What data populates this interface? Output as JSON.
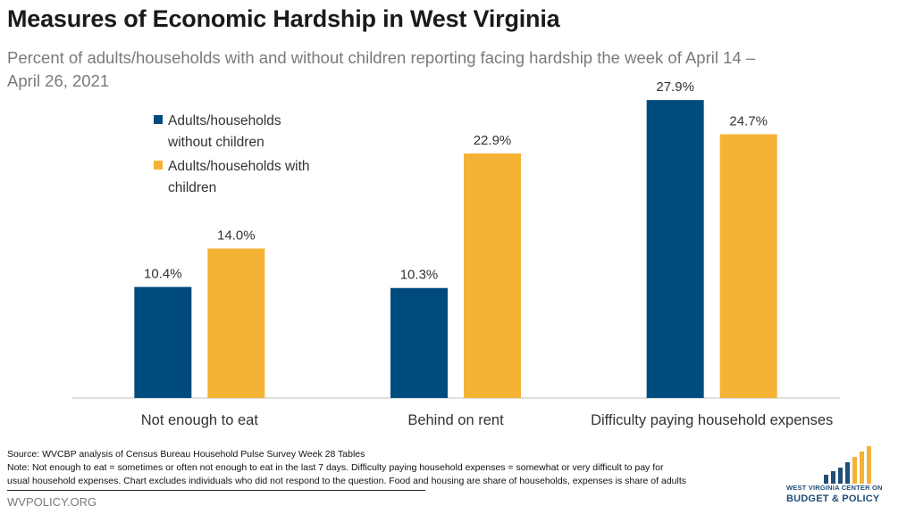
{
  "header": {
    "title": "Measures of Economic Hardship in West Virginia",
    "subtitle": "Percent of adults/households with and without children reporting facing hardship the week of April 14 – April 26, 2021"
  },
  "chart_data": {
    "type": "bar",
    "categories": [
      "Not enough to eat",
      "Behind on rent",
      "Difficulty paying household expenses"
    ],
    "series": [
      {
        "name": "Adults/households without children",
        "values": [
          10.4,
          10.3,
          27.9
        ],
        "color": "#004b7e"
      },
      {
        "name": "Adults/households with children",
        "values": [
          14.0,
          22.9,
          24.7
        ],
        "color": "#f5b335"
      }
    ],
    "data_labels": [
      [
        "10.4%",
        "10.3%",
        "27.9%"
      ],
      [
        "14.0%",
        "22.9%",
        "24.7%"
      ]
    ],
    "legend_lines": [
      [
        "Adults/households",
        "without children"
      ],
      [
        "Adults/households with",
        "children"
      ]
    ],
    "ylim": [
      0,
      30
    ],
    "grid": false,
    "legend_position": "top-left"
  },
  "footer": {
    "source": "Source: WVCBP analysis of Census Bureau Household Pulse Survey Week 28 Tables",
    "note_line1": "Note: Not enough to eat = sometimes or often not enough to eat in the last 7 days. Difficulty paying household expenses = somewhat or very difficult to pay for",
    "note_line2": "usual household expenses. Chart excludes individuals who did not respond to the question. Food and housing are share of households, expenses is share of adults",
    "url": "WVPOLICY.ORG",
    "logo_line1": "WEST VIRGINIA CENTER ON",
    "logo_line2": "BUDGET & POLICY",
    "logo_colors": {
      "blue": "#1f4e79",
      "gold": "#f5b335"
    }
  }
}
